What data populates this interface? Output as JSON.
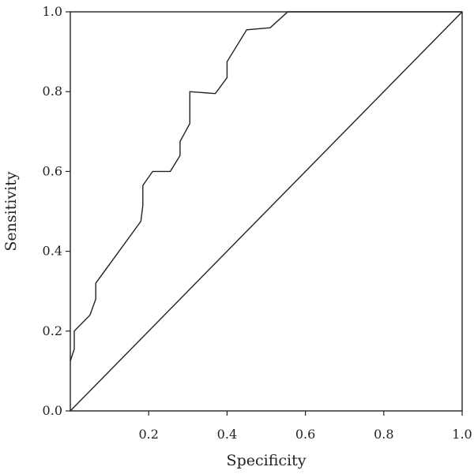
{
  "chart_data": {
    "type": "line",
    "xlabel": "Specificity",
    "ylabel": "Sensitivity",
    "xlim": [
      0,
      1
    ],
    "ylim": [
      0,
      1
    ],
    "x_ticks": [
      "0.2",
      "0.4",
      "0.6",
      "0.8",
      "1.0"
    ],
    "y_ticks": [
      "0.0",
      "0.2",
      "0.4",
      "0.6",
      "0.8",
      "1.0"
    ],
    "grid": false,
    "series": [
      {
        "x": [
          0.0,
          0.01,
          0.01,
          0.05,
          0.065,
          0.065,
          0.18,
          0.185,
          0.185,
          0.21,
          0.255,
          0.28,
          0.28,
          0.305,
          0.305,
          0.37,
          0.4,
          0.4,
          0.45,
          0.51,
          0.555,
          1.0
        ],
        "y": [
          0.125,
          0.155,
          0.2,
          0.24,
          0.28,
          0.32,
          0.475,
          0.515,
          0.565,
          0.6,
          0.6,
          0.64,
          0.675,
          0.72,
          0.8,
          0.795,
          0.835,
          0.875,
          0.955,
          0.96,
          1.0,
          1.0
        ]
      },
      {
        "x": [
          0.0,
          1.0
        ],
        "y": [
          0.0,
          1.0
        ]
      }
    ]
  }
}
